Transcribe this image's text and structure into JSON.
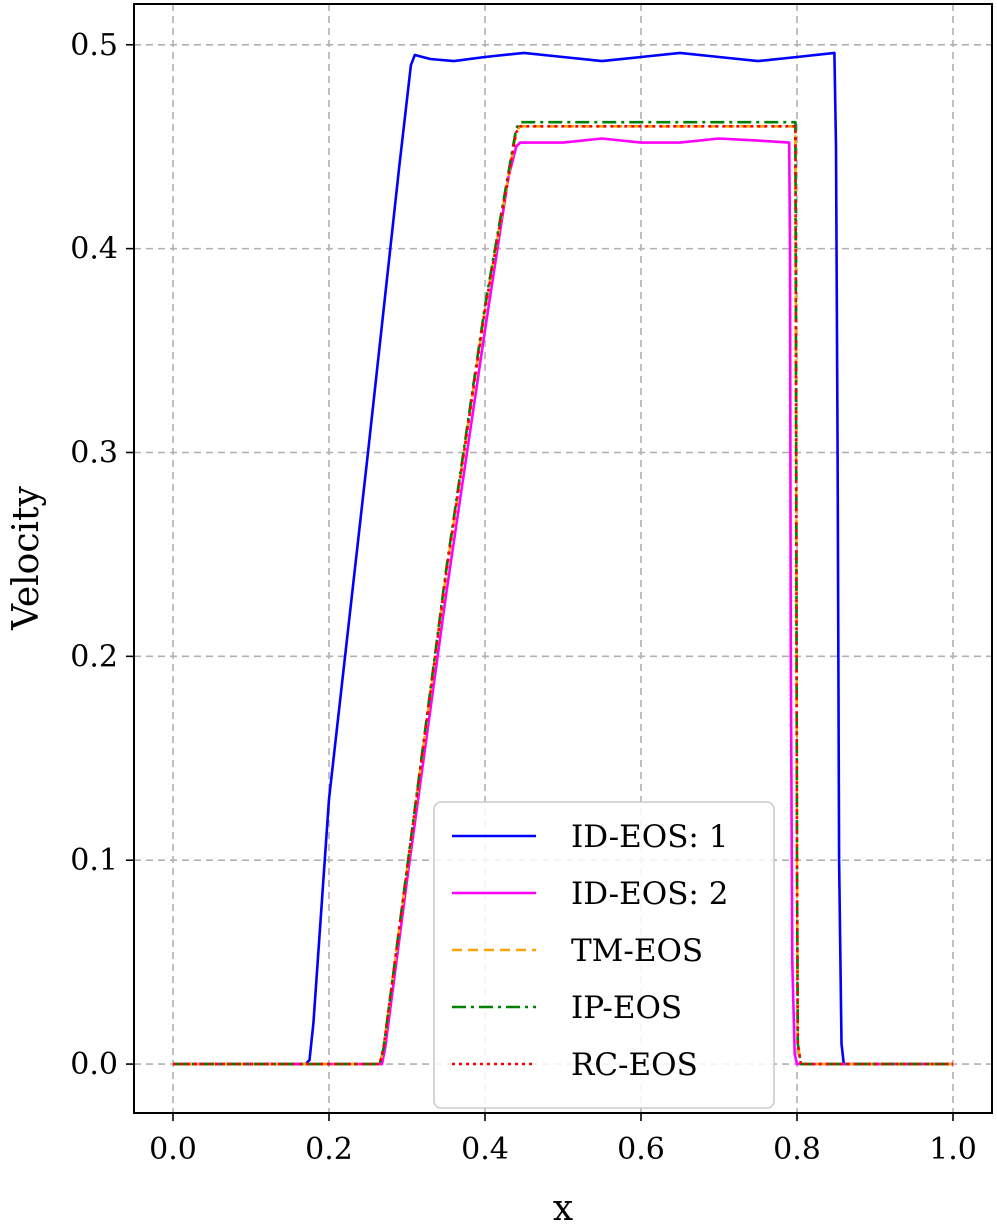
{
  "chart_data": {
    "type": "line",
    "xlabel": "x",
    "ylabel": "Velocity",
    "xlim": [
      -0.05,
      1.05
    ],
    "ylim": [
      -0.024,
      0.52
    ],
    "xticks": [
      0.0,
      0.2,
      0.4,
      0.6,
      0.8,
      1.0
    ],
    "yticks": [
      0.0,
      0.1,
      0.2,
      0.3,
      0.4,
      0.5
    ],
    "xtick_labels": [
      "0.0",
      "0.2",
      "0.4",
      "0.6",
      "0.8",
      "1.0"
    ],
    "ytick_labels": [
      "0.0",
      "0.1",
      "0.2",
      "0.3",
      "0.4",
      "0.5"
    ],
    "grid": true,
    "legend_position": "lower-right",
    "series": [
      {
        "name": "ID-EOS: 1",
        "color": "#0000ff",
        "dash": "solid",
        "x": [
          0.0,
          0.17,
          0.175,
          0.18,
          0.2,
          0.25,
          0.29,
          0.305,
          0.31,
          0.33,
          0.36,
          0.4,
          0.45,
          0.5,
          0.55,
          0.6,
          0.65,
          0.7,
          0.75,
          0.8,
          0.848,
          0.85,
          0.852,
          0.854,
          0.857,
          0.86,
          1.0
        ],
        "y": [
          0.0,
          0.0,
          0.002,
          0.02,
          0.13,
          0.3,
          0.44,
          0.49,
          0.495,
          0.493,
          0.492,
          0.494,
          0.496,
          0.494,
          0.492,
          0.494,
          0.496,
          0.494,
          0.492,
          0.494,
          0.496,
          0.45,
          0.3,
          0.1,
          0.01,
          0.0,
          0.0
        ]
      },
      {
        "name": "ID-EOS: 2",
        "color": "#ff00ff",
        "dash": "solid",
        "x": [
          0.0,
          0.268,
          0.272,
          0.3,
          0.35,
          0.4,
          0.43,
          0.44,
          0.445,
          0.5,
          0.55,
          0.6,
          0.65,
          0.7,
          0.75,
          0.79,
          0.791,
          0.792,
          0.794,
          0.797,
          0.8,
          1.0
        ],
        "y": [
          0.0,
          0.0,
          0.008,
          0.09,
          0.23,
          0.36,
          0.435,
          0.45,
          0.452,
          0.452,
          0.454,
          0.452,
          0.452,
          0.454,
          0.453,
          0.452,
          0.4,
          0.2,
          0.05,
          0.005,
          0.0,
          0.0
        ]
      },
      {
        "name": "TM-EOS",
        "color": "#ffa500",
        "dash": "dashed",
        "x": [
          0.0,
          0.265,
          0.27,
          0.3,
          0.35,
          0.4,
          0.44,
          0.445,
          0.5,
          0.6,
          0.7,
          0.79,
          0.798,
          0.799,
          0.8,
          0.801,
          0.805,
          1.0
        ],
        "y": [
          0.0,
          0.0,
          0.008,
          0.095,
          0.24,
          0.37,
          0.457,
          0.46,
          0.46,
          0.46,
          0.46,
          0.46,
          0.46,
          0.3,
          0.1,
          0.01,
          0.0,
          0.0
        ]
      },
      {
        "name": "IP-EOS",
        "color": "#008000",
        "dash": "dashdot",
        "x": [
          0.0,
          0.265,
          0.27,
          0.3,
          0.35,
          0.4,
          0.44,
          0.445,
          0.5,
          0.6,
          0.7,
          0.79,
          0.798,
          0.799,
          0.8,
          0.801,
          0.805,
          1.0
        ],
        "y": [
          0.0,
          0.0,
          0.008,
          0.096,
          0.242,
          0.372,
          0.459,
          0.462,
          0.462,
          0.462,
          0.462,
          0.462,
          0.462,
          0.3,
          0.1,
          0.01,
          0.0,
          0.0
        ]
      },
      {
        "name": "RC-EOS",
        "color": "#ff0000",
        "dash": "dotted",
        "x": [
          0.0,
          0.265,
          0.27,
          0.3,
          0.35,
          0.4,
          0.44,
          0.445,
          0.5,
          0.6,
          0.7,
          0.79,
          0.798,
          0.799,
          0.8,
          0.801,
          0.805,
          1.0
        ],
        "y": [
          0.0,
          0.0,
          0.008,
          0.095,
          0.24,
          0.37,
          0.457,
          0.46,
          0.46,
          0.46,
          0.46,
          0.46,
          0.46,
          0.3,
          0.1,
          0.01,
          0.0,
          0.0
        ]
      }
    ]
  }
}
